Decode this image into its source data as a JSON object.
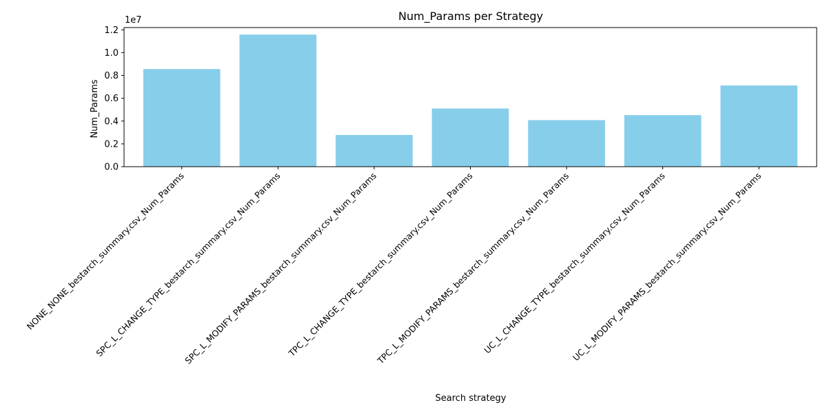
{
  "chart_data": {
    "type": "bar",
    "title": "Num_Params per Strategy",
    "xlabel": "Search strategy",
    "ylabel": "Num_Params",
    "offset_text": "1e7",
    "categories": [
      "NONE_NONE_bestarch_summary.csv_Num_Params",
      "SPC_L_CHANGE_TYPE_bestarch_summary.csv_Num_Params",
      "SPC_L_MODIFY_PARAMS_bestarch_summary.csv_Num_Params",
      "TPC_L_CHANGE_TYPE_bestarch_summary.csv_Num_Params",
      "TPC_L_MODIFY_PARAMS_bestarch_summary.csv_Num_Params",
      "UC_L_CHANGE_TYPE_bestarch_summary.csv_Num_Params",
      "UC_L_MODIFY_PARAMS_bestarch_summary.csv_Num_Params"
    ],
    "values": [
      8560000,
      11580000,
      2780000,
      5100000,
      4080000,
      4520000,
      7120000
    ],
    "ylim": [
      0,
      12200000
    ],
    "yticks": [
      0,
      2000000,
      4000000,
      6000000,
      8000000,
      10000000,
      12000000
    ],
    "ytick_labels": [
      "0.0",
      "0.2",
      "0.4",
      "0.6",
      "0.8",
      "1.0",
      "1.2"
    ],
    "bar_color": "#87ceeb",
    "grid": false
  }
}
